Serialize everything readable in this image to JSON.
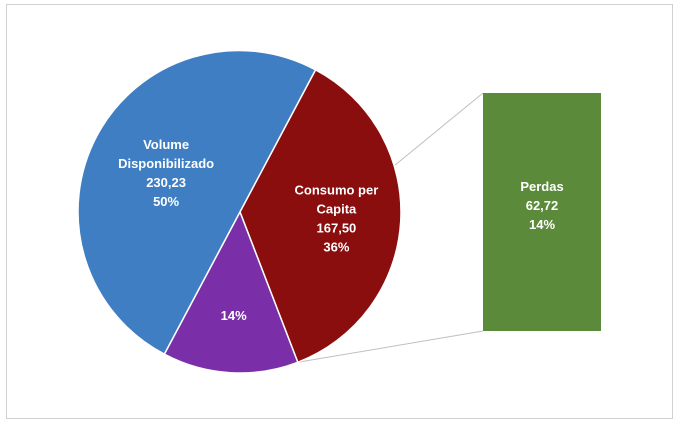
{
  "chart_data": {
    "type": "pie",
    "title": "",
    "slices": [
      {
        "name": "Volume Disponibilizado",
        "label_lines": [
          "Volume",
          "Disponibilizado"
        ],
        "value": 230.23,
        "value_label": "230,23",
        "percent_label": "50%",
        "color": "#3f7ec3"
      },
      {
        "name": "Consumo per Capita",
        "label_lines": [
          "Consumo per",
          "Capita"
        ],
        "value": 167.5,
        "value_label": "167,50",
        "percent_label": "36%",
        "color": "#8b0e0e"
      },
      {
        "name": "Perdas",
        "label_lines": [
          "14%"
        ],
        "value": 62.72,
        "value_label": "",
        "percent_label": "",
        "color": "#7a2ea7"
      }
    ],
    "breakout": {
      "name": "Perdas",
      "label_lines": [
        "Perdas"
      ],
      "value": 62.72,
      "value_label": "62,72",
      "percent_label": "14%",
      "color": "#5a8a3a"
    },
    "legend": "none",
    "grid": false
  }
}
